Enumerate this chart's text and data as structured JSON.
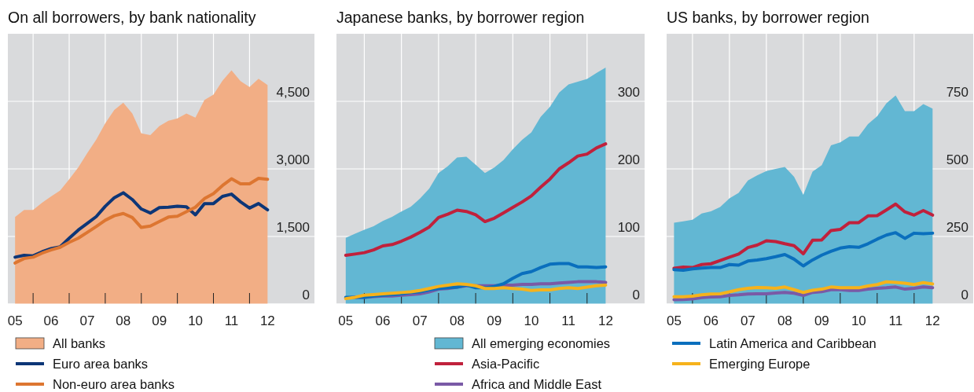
{
  "chart_data": [
    {
      "type": "line",
      "title": "On all borrowers, by bank nationality",
      "x": [
        2005,
        2005.25,
        2005.5,
        2005.75,
        2006,
        2006.25,
        2006.5,
        2006.75,
        2007,
        2007.25,
        2007.5,
        2007.75,
        2008,
        2008.25,
        2008.5,
        2008.75,
        2009,
        2009.25,
        2009.5,
        2009.75,
        2010,
        2010.25,
        2010.5,
        2010.75,
        2011,
        2011.25,
        2011.5,
        2011.75,
        2012
      ],
      "xlim": [
        2004.8,
        2013.3
      ],
      "xticks": [
        {
          "value": 2005,
          "label": "05"
        },
        {
          "value": 2005.5,
          "label": null
        },
        {
          "value": 2006,
          "label": "06"
        },
        {
          "value": 2006.5,
          "label": null
        },
        {
          "value": 2007,
          "label": "07"
        },
        {
          "value": 2007.5,
          "label": null
        },
        {
          "value": 2008,
          "label": "08"
        },
        {
          "value": 2008.5,
          "label": null
        },
        {
          "value": 2009,
          "label": "09"
        },
        {
          "value": 2009.5,
          "label": null
        },
        {
          "value": 2010,
          "label": "10"
        },
        {
          "value": 2010.5,
          "label": null
        },
        {
          "value": 2011,
          "label": "11"
        },
        {
          "value": 2011.5,
          "label": null
        },
        {
          "value": 2012,
          "label": "12"
        }
      ],
      "ylim": [
        0,
        6000
      ],
      "yticks": [
        0,
        {
          "value": 1500,
          "label": "1,500"
        },
        {
          "value": 3000,
          "label": "3,000"
        },
        {
          "value": 4500,
          "label": "4,500"
        }
      ],
      "grid": true,
      "legend": "bottom",
      "series": [
        {
          "name": "All banks",
          "type": "area",
          "color": "#f2ae85",
          "values": [
            1930,
            2090,
            2090,
            2250,
            2390,
            2520,
            2770,
            3030,
            3350,
            3650,
            4010,
            4310,
            4470,
            4230,
            3790,
            3750,
            3950,
            4070,
            4120,
            4230,
            4140,
            4530,
            4650,
            4960,
            5190,
            4950,
            4820,
            5000,
            4860
          ]
        },
        {
          "name": "Euro area banks",
          "type": "line",
          "color": "#0d3677",
          "values": [
            1040,
            1080,
            1070,
            1160,
            1230,
            1270,
            1460,
            1640,
            1790,
            1940,
            2170,
            2360,
            2470,
            2320,
            2110,
            2020,
            2140,
            2150,
            2170,
            2160,
            1980,
            2230,
            2230,
            2390,
            2440,
            2270,
            2130,
            2230,
            2090
          ]
        },
        {
          "name": "Non-euro area banks",
          "type": "line",
          "color": "#dd7631",
          "values": [
            910,
            1010,
            1040,
            1130,
            1200,
            1260,
            1370,
            1460,
            1590,
            1720,
            1860,
            1960,
            2010,
            1920,
            1700,
            1730,
            1830,
            1930,
            1950,
            2050,
            2150,
            2340,
            2450,
            2630,
            2780,
            2670,
            2670,
            2790,
            2770
          ]
        }
      ]
    },
    {
      "type": "line",
      "title": "Japanese banks, by borrower region",
      "x": [
        2005,
        2005.25,
        2005.5,
        2005.75,
        2006,
        2006.25,
        2006.5,
        2006.75,
        2007,
        2007.25,
        2007.5,
        2007.75,
        2008,
        2008.25,
        2008.5,
        2008.75,
        2009,
        2009.25,
        2009.5,
        2009.75,
        2010,
        2010.25,
        2010.5,
        2010.75,
        2011,
        2011.25,
        2011.5,
        2011.75,
        2012
      ],
      "xlim": [
        2004.75,
        2013.05
      ],
      "xticks": [
        {
          "value": 2005,
          "label": "05"
        },
        {
          "value": 2005.5,
          "label": null
        },
        {
          "value": 2006,
          "label": "06"
        },
        {
          "value": 2006.5,
          "label": null
        },
        {
          "value": 2007,
          "label": "07"
        },
        {
          "value": 2007.5,
          "label": null
        },
        {
          "value": 2008,
          "label": "08"
        },
        {
          "value": 2008.5,
          "label": null
        },
        {
          "value": 2009,
          "label": "09"
        },
        {
          "value": 2009.5,
          "label": null
        },
        {
          "value": 2010,
          "label": "10"
        },
        {
          "value": 2010.5,
          "label": null
        },
        {
          "value": 2011,
          "label": "11"
        },
        {
          "value": 2011.5,
          "label": null
        },
        {
          "value": 2012,
          "label": "12"
        }
      ],
      "ylim": [
        0,
        400
      ],
      "yticks": [
        0,
        100,
        200,
        300
      ],
      "grid": true,
      "legend": "bottom",
      "series": [
        {
          "name": "All emerging economies",
          "type": "area",
          "color": "#62b7d3",
          "values": [
            98,
            104,
            110,
            115,
            123,
            129,
            137,
            144,
            156,
            171,
            194,
            204,
            217,
            218,
            206,
            194,
            202,
            213,
            229,
            243,
            254,
            277,
            292,
            313,
            325,
            329,
            333,
            342,
            350
          ]
        },
        {
          "name": "Asia-Pacific",
          "type": "line",
          "color": "#c0213c",
          "values": [
            72,
            74,
            76,
            80,
            86,
            88,
            93,
            99,
            106,
            114,
            128,
            133,
            139,
            137,
            132,
            122,
            127,
            135,
            143,
            151,
            160,
            173,
            185,
            200,
            209,
            219,
            222,
            231,
            237
          ]
        },
        {
          "name": "Africa and Middle East",
          "type": "line",
          "color": "#7a5aa6",
          "values": [
            9,
            10,
            10,
            11,
            12,
            12,
            13,
            14,
            15,
            18,
            22,
            23,
            25,
            27,
            27,
            27,
            27,
            28,
            28,
            29,
            29,
            30,
            30,
            31,
            32,
            33,
            33,
            33,
            32
          ]
        },
        {
          "type": "line",
          "color": "#0a6fbd",
          "values": [
            10,
            10,
            10,
            12,
            13,
            14,
            15,
            17,
            18,
            21,
            23,
            24,
            25,
            28,
            24,
            24,
            26,
            30,
            38,
            45,
            48,
            54,
            59,
            60,
            60,
            55,
            55,
            54,
            55
          ]
        },
        {
          "type": "line",
          "color": "#f6b21b",
          "values": [
            8,
            10,
            13,
            14,
            15,
            16,
            17,
            18,
            20,
            23,
            26,
            28,
            30,
            29,
            27,
            23,
            23,
            24,
            23,
            22,
            20,
            21,
            21,
            23,
            24,
            23,
            25,
            27,
            28
          ]
        }
      ]
    },
    {
      "type": "line",
      "title": "US banks, by borrower region",
      "x": [
        2005,
        2005.25,
        2005.5,
        2005.75,
        2006,
        2006.25,
        2006.5,
        2006.75,
        2007,
        2007.25,
        2007.5,
        2007.75,
        2008,
        2008.25,
        2008.5,
        2008.75,
        2009,
        2009.25,
        2009.5,
        2009.75,
        2010,
        2010.25,
        2010.5,
        2010.75,
        2011,
        2011.25,
        2011.5,
        2011.75,
        2012
      ],
      "xlim": [
        2004.8,
        2013.1
      ],
      "xticks": [
        {
          "value": 2005,
          "label": "05"
        },
        {
          "value": 2005.5,
          "label": null
        },
        {
          "value": 2006,
          "label": "06"
        },
        {
          "value": 2006.5,
          "label": null
        },
        {
          "value": 2007,
          "label": "07"
        },
        {
          "value": 2007.5,
          "label": null
        },
        {
          "value": 2008,
          "label": "08"
        },
        {
          "value": 2008.5,
          "label": null
        },
        {
          "value": 2009,
          "label": "09"
        },
        {
          "value": 2009.5,
          "label": null
        },
        {
          "value": 2010,
          "label": "10"
        },
        {
          "value": 2010.5,
          "label": null
        },
        {
          "value": 2011,
          "label": "11"
        },
        {
          "value": 2011.5,
          "label": null
        },
        {
          "value": 2012,
          "label": "12"
        }
      ],
      "ylim": [
        0,
        1000
      ],
      "yticks": [
        0,
        250,
        500,
        750
      ],
      "grid": true,
      "legend": "bottom",
      "series": [
        {
          "type": "area",
          "color": "#62b7d3",
          "values": [
            301,
            306,
            312,
            335,
            343,
            359,
            391,
            411,
            457,
            476,
            492,
            500,
            507,
            471,
            404,
            490,
            514,
            587,
            598,
            620,
            620,
            666,
            695,
            743,
            772,
            714,
            714,
            740,
            723
          ]
        },
        {
          "type": "line",
          "color": "#c0213c",
          "values": [
            132,
            137,
            135,
            146,
            149,
            161,
            173,
            185,
            209,
            218,
            234,
            231,
            223,
            216,
            186,
            236,
            237,
            272,
            276,
            301,
            301,
            326,
            327,
            348,
            370,
            341,
            329,
            346,
            329
          ]
        },
        {
          "type": "line",
          "color": "#7a5aa6",
          "values": [
            16,
            17,
            19,
            24,
            26,
            27,
            32,
            34,
            37,
            38,
            38,
            41,
            43,
            40,
            32,
            43,
            46,
            53,
            53,
            50,
            50,
            55,
            58,
            60,
            63,
            55,
            58,
            63,
            60
          ]
        },
        {
          "name": "Latin America and Caribbean",
          "type": "line",
          "color": "#0a6fbd",
          "values": [
            127,
            125,
            130,
            133,
            135,
            135,
            146,
            144,
            159,
            163,
            168,
            175,
            183,
            166,
            141,
            163,
            181,
            195,
            207,
            212,
            210,
            223,
            240,
            255,
            264,
            243,
            262,
            260,
            262
          ]
        },
        {
          "name": "Emerging Europe",
          "type": "line",
          "color": "#f6b21b",
          "values": [
            27,
            27,
            29,
            34,
            37,
            38,
            45,
            53,
            58,
            61,
            60,
            58,
            63,
            53,
            43,
            51,
            55,
            63,
            60,
            60,
            60,
            67,
            72,
            82,
            80,
            77,
            72,
            79,
            74
          ]
        }
      ]
    }
  ]
}
